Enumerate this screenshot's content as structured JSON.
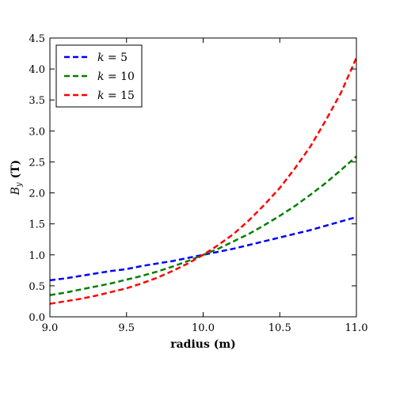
{
  "chart_data": {
    "type": "line",
    "title": "",
    "xlabel": "radius (m)",
    "ylabel_main": "B",
    "ylabel_sub": "y",
    "ylabel_unit": " (T)",
    "xlim": [
      9.0,
      11.0
    ],
    "ylim": [
      0.0,
      4.5
    ],
    "xticks": [
      9.0,
      9.5,
      10.0,
      10.5,
      11.0
    ],
    "xtick_labels": [
      "9.0",
      "9.5",
      "10.0",
      "10.5",
      "11.0"
    ],
    "yticks": [
      0.0,
      0.5,
      1.0,
      1.5,
      2.0,
      2.5,
      3.0,
      3.5,
      4.0,
      4.5
    ],
    "ytick_labels": [
      "0.0",
      "0.5",
      "1.0",
      "1.5",
      "2.0",
      "2.5",
      "3.0",
      "3.5",
      "4.0",
      "4.5"
    ],
    "grid": false,
    "legend_position": "upper-left",
    "line_style": "dashed",
    "x": [
      9.0,
      9.1,
      9.2,
      9.3,
      9.4,
      9.5,
      9.6,
      9.7,
      9.8,
      9.9,
      10.0,
      10.1,
      10.2,
      10.3,
      10.4,
      10.5,
      10.6,
      10.7,
      10.8,
      10.9,
      11.0
    ],
    "series": [
      {
        "name_var": "k",
        "name_rest": " = 5",
        "color": "#0000ff",
        "values": [
          0.59,
          0.62,
          0.66,
          0.7,
          0.74,
          0.77,
          0.82,
          0.86,
          0.9,
          0.95,
          1.0,
          1.05,
          1.1,
          1.16,
          1.22,
          1.28,
          1.34,
          1.4,
          1.47,
          1.54,
          1.61
        ]
      },
      {
        "name_var": "k",
        "name_rest": " = 10",
        "color": "#008000",
        "values": [
          0.35,
          0.39,
          0.44,
          0.49,
          0.54,
          0.6,
          0.66,
          0.73,
          0.81,
          0.9,
          1.0,
          1.1,
          1.22,
          1.34,
          1.48,
          1.63,
          1.79,
          1.97,
          2.16,
          2.37,
          2.59
        ]
      },
      {
        "name_var": "k",
        "name_rest": " = 15",
        "color": "#ff0000",
        "values": [
          0.21,
          0.25,
          0.29,
          0.34,
          0.4,
          0.46,
          0.54,
          0.63,
          0.74,
          0.86,
          1.0,
          1.16,
          1.34,
          1.56,
          1.81,
          2.08,
          2.4,
          2.75,
          3.17,
          3.62,
          4.18
        ]
      }
    ]
  }
}
